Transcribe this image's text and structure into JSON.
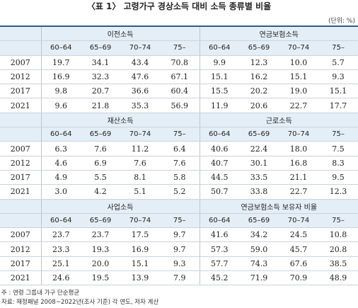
{
  "title": "〈표 1〉 고령가구 경상소득 대비 소득 종류별 비율",
  "unit": "(단위: %)",
  "table": {
    "blocks": [
      {
        "groups": [
          "이전소득",
          "연금보험소득"
        ],
        "columns": [
          "60–64",
          "65–69",
          "70–74",
          "75–",
          "60–64",
          "65–69",
          "70–74",
          "75–"
        ],
        "rows": [
          {
            "year": "2007",
            "values": [
              "19.7",
              "34.1",
              "43.4",
              "70.8",
              "9.9",
              "12.3",
              "10.0",
              "5.7"
            ]
          },
          {
            "year": "2012",
            "values": [
              "16.9",
              "32.3",
              "47.6",
              "67.1",
              "15.1",
              "16.2",
              "15.1",
              "9.3"
            ]
          },
          {
            "year": "2017",
            "values": [
              "9.8",
              "20.7",
              "36.6",
              "60.4",
              "15.5",
              "20.2",
              "19.0",
              "15.1"
            ]
          },
          {
            "year": "2021",
            "values": [
              "9.6",
              "21.8",
              "35.3",
              "56.9",
              "11.9",
              "20.6",
              "22.7",
              "17.7"
            ]
          }
        ]
      },
      {
        "groups": [
          "재산소득",
          "근로소득"
        ],
        "columns": [
          "60–64",
          "65–69",
          "70–74",
          "75–",
          "60–64",
          "65–69",
          "70–74",
          "75–"
        ],
        "rows": [
          {
            "year": "2007",
            "values": [
              "6.3",
              "7.6",
              "11.2",
              "6.4",
              "40.6",
              "22.4",
              "18.0",
              "7.5"
            ]
          },
          {
            "year": "2012",
            "values": [
              "4.6",
              "6.9",
              "7.6",
              "7.6",
              "40.7",
              "30.1",
              "16.8",
              "8.3"
            ]
          },
          {
            "year": "2017",
            "values": [
              "4.9",
              "5.5",
              "8.1",
              "5.8",
              "44.5",
              "33.5",
              "21.1",
              "9.5"
            ]
          },
          {
            "year": "2021",
            "values": [
              "3.0",
              "4.2",
              "5.1",
              "5.2",
              "50.7",
              "33.8",
              "22.7",
              "12.3"
            ]
          }
        ]
      },
      {
        "groups": [
          "사업소득",
          "연금보험소득 보유자 비율"
        ],
        "columns": [
          "60–64",
          "65–69",
          "70–74",
          "75–",
          "60–64",
          "65–69",
          "70–74",
          "75–"
        ],
        "rows": [
          {
            "year": "2007",
            "values": [
              "23.7",
              "23.7",
              "17.5",
              "9.7",
              "41.6",
              "34.2",
              "24.5",
              "10.8"
            ]
          },
          {
            "year": "2012",
            "values": [
              "23.3",
              "19.3",
              "16.9",
              "9.7",
              "57.3",
              "59.0",
              "45.7",
              "20.8"
            ]
          },
          {
            "year": "2017",
            "values": [
              "25.1",
              "20.0",
              "15.1",
              "9.3",
              "57.7",
              "74.3",
              "67.6",
              "38.5"
            ]
          },
          {
            "year": "2021",
            "values": [
              "24.6",
              "19.5",
              "13.9",
              "7.9",
              "45.2",
              "71.9",
              "70.9",
              "48.9"
            ]
          }
        ]
      }
    ]
  },
  "notes": [
    "주 : 연령 그룹내 가구 단순평균",
    "자료: 재정패널 2008~2022년(조사 기준) 각 연도, 저자 계산"
  ]
}
